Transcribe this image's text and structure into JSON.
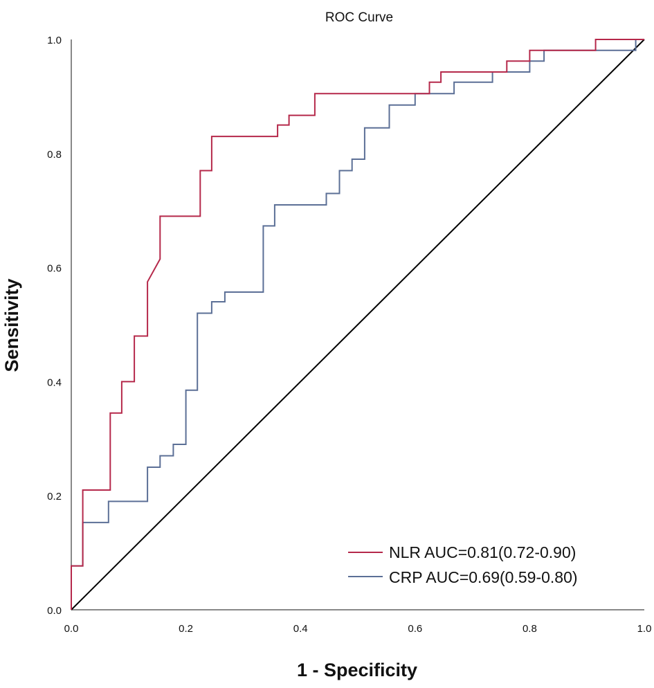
{
  "chart_data": {
    "type": "line",
    "title": "ROC Curve",
    "xlabel": "1 - Specificity",
    "ylabel": "Sensitivity",
    "xlim": [
      0,
      1
    ],
    "ylim": [
      0,
      1
    ],
    "x_ticks": [
      "0.0",
      "0.2",
      "0.4",
      "0.6",
      "0.8",
      "1.0"
    ],
    "y_ticks": [
      "0.0",
      "0.2",
      "0.4",
      "0.6",
      "0.8",
      "1.0"
    ],
    "legend_position": "bottom-right",
    "reference_line": {
      "x": [
        0,
        1
      ],
      "y": [
        0,
        1
      ],
      "color": "#000000"
    },
    "series": [
      {
        "name": "NLR AUC=0.81(0.72-0.90)",
        "color": "#b5284a",
        "points": [
          [
            0,
            0
          ],
          [
            0,
            0.077
          ],
          [
            0.02,
            0.077
          ],
          [
            0.02,
            0.153
          ],
          [
            0.02,
            0.21
          ],
          [
            0.068,
            0.21
          ],
          [
            0.068,
            0.345
          ],
          [
            0.088,
            0.345
          ],
          [
            0.088,
            0.4
          ],
          [
            0.11,
            0.4
          ],
          [
            0.11,
            0.48
          ],
          [
            0.133,
            0.48
          ],
          [
            0.133,
            0.575
          ],
          [
            0.155,
            0.615
          ],
          [
            0.155,
            0.69
          ],
          [
            0.225,
            0.69
          ],
          [
            0.225,
            0.77
          ],
          [
            0.245,
            0.77
          ],
          [
            0.245,
            0.83
          ],
          [
            0.36,
            0.83
          ],
          [
            0.36,
            0.85
          ],
          [
            0.38,
            0.85
          ],
          [
            0.38,
            0.867
          ],
          [
            0.425,
            0.867
          ],
          [
            0.425,
            0.905
          ],
          [
            0.6,
            0.905
          ],
          [
            0.625,
            0.905
          ],
          [
            0.625,
            0.925
          ],
          [
            0.645,
            0.925
          ],
          [
            0.645,
            0.943
          ],
          [
            0.76,
            0.943
          ],
          [
            0.76,
            0.962
          ],
          [
            0.8,
            0.962
          ],
          [
            0.8,
            0.981
          ],
          [
            0.915,
            0.981
          ],
          [
            0.915,
            1.0
          ],
          [
            1.0,
            1.0
          ]
        ]
      },
      {
        "name": "CRP AUC=0.69(0.59-0.80)",
        "color": "#5b6f96",
        "points": [
          [
            0,
            0
          ],
          [
            0,
            0.077
          ],
          [
            0.02,
            0.077
          ],
          [
            0.02,
            0.153
          ],
          [
            0.065,
            0.153
          ],
          [
            0.065,
            0.19
          ],
          [
            0.133,
            0.19
          ],
          [
            0.133,
            0.25
          ],
          [
            0.155,
            0.25
          ],
          [
            0.155,
            0.27
          ],
          [
            0.178,
            0.27
          ],
          [
            0.178,
            0.29
          ],
          [
            0.2,
            0.29
          ],
          [
            0.2,
            0.385
          ],
          [
            0.22,
            0.385
          ],
          [
            0.22,
            0.52
          ],
          [
            0.245,
            0.52
          ],
          [
            0.245,
            0.54
          ],
          [
            0.268,
            0.54
          ],
          [
            0.268,
            0.557
          ],
          [
            0.335,
            0.557
          ],
          [
            0.335,
            0.673
          ],
          [
            0.355,
            0.673
          ],
          [
            0.355,
            0.71
          ],
          [
            0.445,
            0.71
          ],
          [
            0.445,
            0.73
          ],
          [
            0.468,
            0.73
          ],
          [
            0.468,
            0.77
          ],
          [
            0.49,
            0.77
          ],
          [
            0.49,
            0.79
          ],
          [
            0.512,
            0.79
          ],
          [
            0.512,
            0.845
          ],
          [
            0.555,
            0.845
          ],
          [
            0.555,
            0.885
          ],
          [
            0.6,
            0.885
          ],
          [
            0.6,
            0.905
          ],
          [
            0.668,
            0.905
          ],
          [
            0.668,
            0.925
          ],
          [
            0.735,
            0.925
          ],
          [
            0.735,
            0.943
          ],
          [
            0.8,
            0.943
          ],
          [
            0.8,
            0.962
          ],
          [
            0.825,
            0.962
          ],
          [
            0.825,
            0.981
          ],
          [
            0.985,
            0.981
          ],
          [
            0.985,
            1.0
          ],
          [
            1.0,
            1.0
          ]
        ]
      }
    ]
  }
}
